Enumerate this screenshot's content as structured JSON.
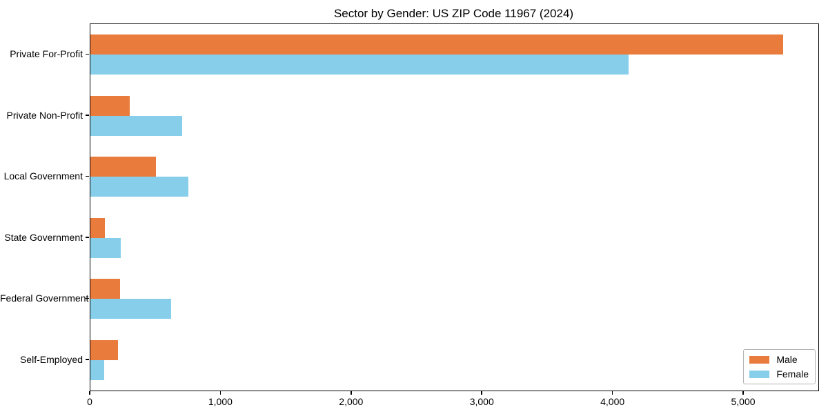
{
  "chart_data": {
    "type": "bar",
    "orientation": "horizontal",
    "title": "Sector by Gender: US ZIP Code 11967 (2024)",
    "categories": [
      "Private For-Profit",
      "Private Non-Profit",
      "Local Government",
      "State Government",
      "Federal Government",
      "Self-Employed"
    ],
    "series": [
      {
        "name": "Male",
        "color": "#e97b3d",
        "values": [
          5300,
          300,
          500,
          110,
          225,
          210
        ]
      },
      {
        "name": "Female",
        "color": "#87ceeb",
        "values": [
          4120,
          700,
          750,
          230,
          620,
          105
        ]
      }
    ],
    "xlim": [
      0,
      5570
    ],
    "x_ticks": [
      0,
      1000,
      2000,
      3000,
      4000,
      5000
    ],
    "x_tick_labels": [
      "0",
      "1,000",
      "2,000",
      "3,000",
      "4,000",
      "5,000"
    ],
    "legend": {
      "position": "lower right",
      "entries": [
        "Male",
        "Female"
      ]
    },
    "grid": false,
    "axis_color": "#000000",
    "background_color": "#ffffff"
  }
}
